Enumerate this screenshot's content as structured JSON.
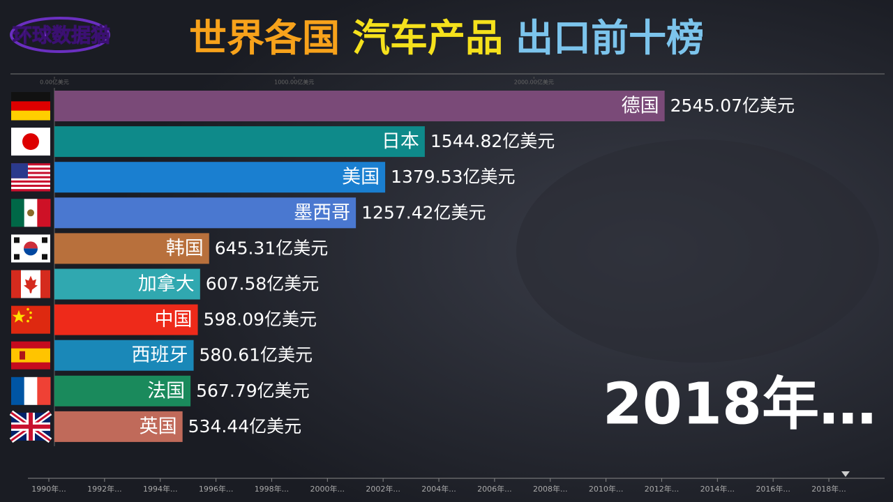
{
  "logo": "环球数据猫",
  "chart_data": {
    "type": "bar",
    "title_parts": [
      "世界各国",
      "汽车产品",
      "出口前十榜"
    ],
    "title_colors": [
      "#f7a21b",
      "#f5e11c",
      "#7cc4ec"
    ],
    "categories": [
      "德国",
      "日本",
      "美国",
      "墨西哥",
      "韩国",
      "加拿大",
      "中国",
      "西班牙",
      "法国",
      "英国"
    ],
    "values": [
      2545.07,
      1544.82,
      1379.53,
      1257.42,
      645.31,
      607.58,
      598.09,
      580.61,
      567.79,
      534.44
    ],
    "value_labels": [
      "2545.07亿美元",
      "1544.82亿美元",
      "1379.53亿美元",
      "1257.42亿美元",
      "645.31亿美元",
      "607.58亿美元",
      "598.09亿美元",
      "580.61亿美元",
      "567.79亿美元",
      "534.44亿美元"
    ],
    "colors": [
      "#7a4a78",
      "#0e8a8a",
      "#1a7fd0",
      "#4a78d0",
      "#b8703c",
      "#30a8b0",
      "#ee2a1a",
      "#1a88b8",
      "#1a8a5c",
      "#c06a5a"
    ],
    "xlim": [
      0,
      3000
    ],
    "xticks": [
      {
        "value": 0,
        "label": "0.00亿美元"
      },
      {
        "value": 1000,
        "label": "1000.00亿美元"
      },
      {
        "value": 2000,
        "label": "2000.00亿美元"
      }
    ],
    "grid": false,
    "current_label": "2018年…",
    "timeline": [
      "1990年...",
      "1992年...",
      "1994年...",
      "1996年...",
      "1998年...",
      "2000年...",
      "2002年...",
      "2004年...",
      "2006年...",
      "2008年...",
      "2010年...",
      "2012年...",
      "2014年...",
      "2016年...",
      "2018年..."
    ]
  }
}
